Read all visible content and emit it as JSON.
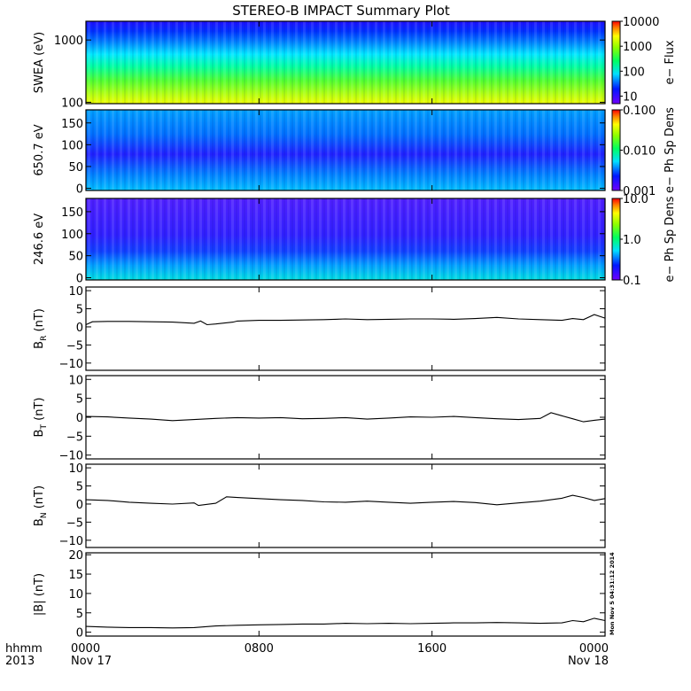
{
  "title": "STEREO-B IMPACT Summary Plot",
  "stamp": "Mon Nov  5 04:31:12 2014",
  "time_axis": {
    "row1_label": "hhmm",
    "row2_label": "2013",
    "ticks": [
      {
        "hours": 0,
        "hhmm": "0000",
        "date": "Nov 17"
      },
      {
        "hours": 8,
        "hhmm": "0800",
        "date": ""
      },
      {
        "hours": 16,
        "hhmm": "1600",
        "date": ""
      },
      {
        "hours": 24,
        "hhmm": "0000",
        "date": "Nov 18"
      }
    ],
    "range_hours": [
      0,
      24
    ]
  },
  "chart_data": [
    {
      "type": "heatmap",
      "ylabel": "SWEA (eV)",
      "yscale": "log",
      "ylim": [
        95,
        2000
      ],
      "yticks": [
        {
          "v": 100,
          "label": "100"
        },
        {
          "v": 1000,
          "label": "1000"
        }
      ],
      "colorbar": {
        "label": "e− Flux",
        "scale": "log",
        "range": [
          5,
          10000
        ],
        "ticks": [
          {
            "v": 10000,
            "label": "10000"
          },
          {
            "v": 1000,
            "label": "1000"
          },
          {
            "v": 100,
            "label": "100"
          },
          {
            "v": 10,
            "label": "10"
          }
        ]
      }
    },
    {
      "type": "heatmap",
      "ylabel": "650.7 eV",
      "ylim": [
        -5,
        180
      ],
      "yticks": [
        {
          "v": 0,
          "label": "0"
        },
        {
          "v": 50,
          "label": "50"
        },
        {
          "v": 100,
          "label": "100"
        },
        {
          "v": 150,
          "label": "150"
        }
      ],
      "colorbar": {
        "label": "e− Ph Sp Dens",
        "scale": "log",
        "range": [
          0.001,
          0.1
        ],
        "ticks": [
          {
            "v": 0.1,
            "label": "0.100"
          },
          {
            "v": 0.01,
            "label": "0.010"
          },
          {
            "v": 0.001,
            "label": "0.001"
          }
        ]
      }
    },
    {
      "type": "heatmap",
      "ylabel": "246.6 eV",
      "ylim": [
        -5,
        180
      ],
      "yticks": [
        {
          "v": 0,
          "label": "0"
        },
        {
          "v": 50,
          "label": "50"
        },
        {
          "v": 100,
          "label": "100"
        },
        {
          "v": 150,
          "label": "150"
        }
      ],
      "colorbar": {
        "label": "e− Ph Sp Dens",
        "scale": "log",
        "range": [
          0.1,
          10
        ],
        "ticks": [
          {
            "v": 10,
            "label": "10.0"
          },
          {
            "v": 1,
            "label": "1.0"
          },
          {
            "v": 0.1,
            "label": "0.1"
          }
        ]
      }
    },
    {
      "type": "line",
      "ylabel": "B",
      "ysub": "R",
      "yunit": " (nT)",
      "ylim": [
        -12,
        11
      ],
      "yticks": [
        {
          "v": -10,
          "label": "−10"
        },
        {
          "v": -5,
          "label": "−5"
        },
        {
          "v": 0,
          "label": "0"
        },
        {
          "v": 5,
          "label": "5"
        },
        {
          "v": 10,
          "label": "10"
        }
      ],
      "x": [
        0,
        0.3,
        1,
        2,
        3,
        4,
        5,
        5.3,
        5.6,
        6,
        6.8,
        7,
        8,
        9,
        10,
        11,
        12,
        13,
        14,
        15,
        16,
        17,
        18,
        19,
        20,
        21,
        22,
        22.5,
        23,
        23.5,
        24
      ],
      "y": [
        0.6,
        1.4,
        1.5,
        1.5,
        1.4,
        1.3,
        1.0,
        1.6,
        0.6,
        0.8,
        1.3,
        1.6,
        1.8,
        1.8,
        1.9,
        2.0,
        2.2,
        2.0,
        2.1,
        2.2,
        2.2,
        2.1,
        2.3,
        2.6,
        2.2,
        2.0,
        1.8,
        2.3,
        2.0,
        3.4,
        2.4
      ]
    },
    {
      "type": "line",
      "ylabel": "B",
      "ysub": "T",
      "yunit": " (nT)",
      "ylim": [
        -11,
        11
      ],
      "yticks": [
        {
          "v": -10,
          "label": "−10"
        },
        {
          "v": -5,
          "label": "−5"
        },
        {
          "v": 0,
          "label": "0"
        },
        {
          "v": 5,
          "label": "5"
        },
        {
          "v": 10,
          "label": "10"
        }
      ],
      "x": [
        0,
        1,
        2,
        3,
        4,
        5,
        6,
        7,
        8,
        9,
        10,
        11,
        12,
        13,
        14,
        15,
        16,
        17,
        18,
        19,
        20,
        21,
        21.5,
        22,
        22.5,
        23,
        23.5,
        24
      ],
      "y": [
        0.2,
        0.1,
        -0.2,
        -0.5,
        -0.9,
        -0.6,
        -0.3,
        -0.1,
        -0.2,
        -0.1,
        -0.4,
        -0.3,
        -0.1,
        -0.5,
        -0.2,
        0.1,
        0.0,
        0.2,
        -0.1,
        -0.4,
        -0.6,
        -0.3,
        1.2,
        0.4,
        -0.4,
        -1.2,
        -0.8,
        -0.5
      ]
    },
    {
      "type": "line",
      "ylabel": "B",
      "ysub": "N",
      "yunit": " (nT)",
      "ylim": [
        -12,
        11
      ],
      "yticks": [
        {
          "v": -10,
          "label": "−10"
        },
        {
          "v": -5,
          "label": "−5"
        },
        {
          "v": 0,
          "label": "0"
        },
        {
          "v": 5,
          "label": "5"
        },
        {
          "v": 10,
          "label": "10"
        }
      ],
      "x": [
        0,
        1,
        2,
        3,
        4,
        5,
        5.2,
        6,
        6.5,
        7,
        8,
        9,
        10,
        11,
        12,
        13,
        14,
        15,
        16,
        17,
        18,
        19,
        20,
        21,
        22,
        22.5,
        23,
        23.5,
        24
      ],
      "y": [
        1.2,
        1.0,
        0.5,
        0.2,
        0.0,
        0.3,
        -0.4,
        0.2,
        2.0,
        1.8,
        1.5,
        1.2,
        1.0,
        0.6,
        0.5,
        0.8,
        0.5,
        0.2,
        0.5,
        0.7,
        0.4,
        -0.2,
        0.3,
        0.8,
        1.6,
        2.4,
        1.8,
        1.0,
        1.5
      ]
    },
    {
      "type": "line",
      "ylabel": "|B|",
      "ysub": "",
      "yunit": " (nT)",
      "ylim": [
        -1,
        20.5
      ],
      "yticks": [
        {
          "v": 0,
          "label": "0"
        },
        {
          "v": 5,
          "label": "5"
        },
        {
          "v": 10,
          "label": "10"
        },
        {
          "v": 15,
          "label": "15"
        },
        {
          "v": 20,
          "label": "20"
        }
      ],
      "x": [
        0,
        1,
        2,
        3,
        4,
        5,
        6,
        7,
        8,
        9,
        10,
        11,
        12,
        13,
        14,
        15,
        16,
        17,
        18,
        19,
        20,
        21,
        22,
        22.5,
        23,
        23.5,
        24
      ],
      "y": [
        1.5,
        1.3,
        1.2,
        1.2,
        1.1,
        1.2,
        1.6,
        1.8,
        1.9,
        2.0,
        2.1,
        2.1,
        2.3,
        2.2,
        2.3,
        2.2,
        2.3,
        2.4,
        2.4,
        2.5,
        2.4,
        2.3,
        2.4,
        3.0,
        2.7,
        3.6,
        3.0
      ]
    }
  ]
}
